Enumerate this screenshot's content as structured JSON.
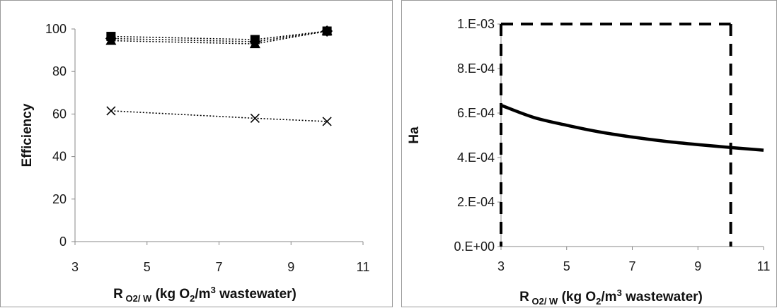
{
  "chart_data": [
    {
      "type": "line",
      "title": "",
      "xlabel": "R O2/W (kg O2/m3 wastewater)",
      "xlabel_parts": {
        "main": "R",
        "subscript": "O2/ W",
        "open": " (kg O",
        "o2_sub": "2",
        "mid": "/m",
        "sup": "3",
        "close": " wastewater)"
      },
      "ylabel": "Efficiency",
      "xlim": [
        3,
        11
      ],
      "ylim": [
        0,
        100
      ],
      "xticks": [
        "3",
        "5",
        "7",
        "9",
        "11"
      ],
      "yticks": [
        "0",
        "20",
        "40",
        "60",
        "80",
        "100"
      ],
      "grid": false,
      "legend": "none",
      "series": [
        {
          "marker": "square",
          "line": "dotted",
          "color": "#000000",
          "x": [
            4,
            8,
            10
          ],
          "y": [
            96.5,
            95,
            99
          ]
        },
        {
          "marker": "diamond",
          "line": "dotted",
          "color": "#000000",
          "x": [
            4,
            8,
            10
          ],
          "y": [
            95.5,
            94,
            99
          ]
        },
        {
          "marker": "triangle",
          "line": "dotted",
          "color": "#000000",
          "x": [
            4,
            8,
            10
          ],
          "y": [
            94.5,
            93,
            99
          ]
        },
        {
          "marker": "x",
          "line": "dotted",
          "color": "#000000",
          "x": [
            4,
            8,
            10
          ],
          "y": [
            61.5,
            58,
            56.5
          ]
        }
      ]
    },
    {
      "type": "line",
      "title": "",
      "xlabel": "R O2/W (kg O2/m3 wastewater)",
      "xlabel_parts": {
        "main": "R",
        "subscript": "O2/ W",
        "open": " (kg O",
        "o2_sub": "2",
        "mid": "/m",
        "sup": "3",
        "close": " wastewater)"
      },
      "ylabel": "Ha",
      "xlim": [
        3,
        11
      ],
      "ylim": [
        0,
        0.001
      ],
      "xticks": [
        "3",
        "5",
        "7",
        "9",
        "11"
      ],
      "yticks": [
        "0.E+00",
        "2.E-04",
        "4.E-04",
        "6.E-04",
        "8.E-04",
        "1.E-03"
      ],
      "grid": false,
      "legend": "none",
      "series": [
        {
          "line": "solid",
          "color": "#000000",
          "x": [
            3,
            4,
            5,
            6,
            7,
            8,
            9,
            10,
            11
          ],
          "y": [
            0.000635,
            0.00058,
            0.000545,
            0.000515,
            0.000492,
            0.000473,
            0.000458,
            0.000445,
            0.000433
          ]
        }
      ],
      "boundary": {
        "line": "dashed",
        "color": "#000000",
        "x": [
          3,
          10
        ],
        "y_top": 0.001
      }
    }
  ]
}
